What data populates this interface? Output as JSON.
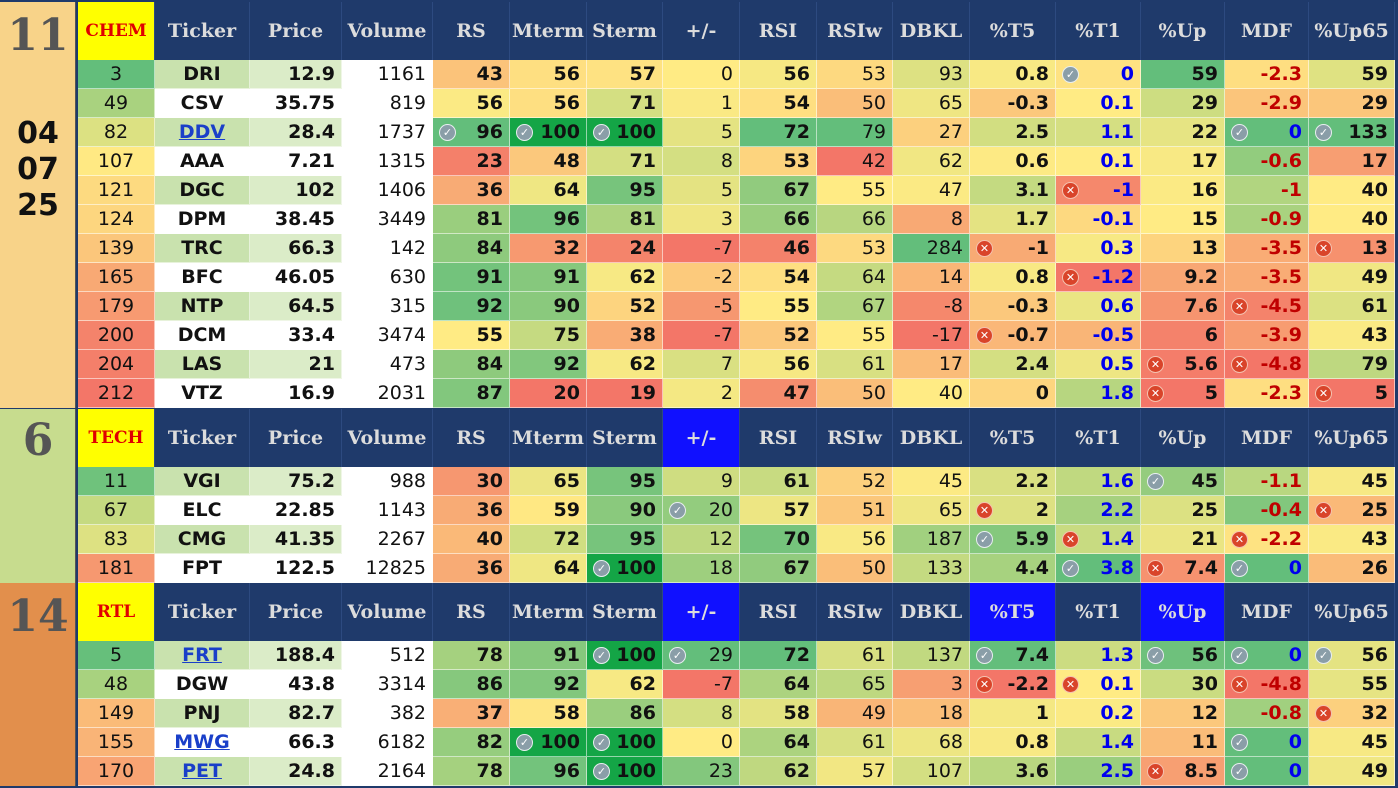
{
  "columns": [
    "Ticker",
    "Price",
    "Volume",
    "RS",
    "Mterm",
    "Sterm",
    "+/-",
    "RSI",
    "RSIw",
    "DBKL",
    "%T5",
    "%T1",
    "%Up",
    "MDF",
    "%Up65"
  ],
  "sections": [
    {
      "count": "11",
      "date": [
        "04",
        "07",
        "25"
      ],
      "sector": "CHEM",
      "highlight_cols": [],
      "rows": [
        {
          "rank": "3",
          "ticker": "DRI",
          "price": "12.9",
          "volume": "1161",
          "rs": "43",
          "mterm": "56",
          "sterm": "57",
          "pm": "0",
          "rsi": "56",
          "rsiw": "53",
          "dbkl": "93",
          "t5": "0.8",
          "t1": "0",
          "up": "59",
          "mdf": "-2.3",
          "up65": "59"
        },
        {
          "rank": "49",
          "ticker": "CSV",
          "price": "35.75",
          "volume": "819",
          "rs": "56",
          "mterm": "56",
          "sterm": "71",
          "pm": "1",
          "rsi": "54",
          "rsiw": "50",
          "dbkl": "65",
          "t5": "-0.3",
          "t1": "0.1",
          "up": "29",
          "mdf": "-2.9",
          "up65": "29"
        },
        {
          "rank": "82",
          "ticker": "DDV",
          "price": "28.4",
          "volume": "1737",
          "rs": "96",
          "mterm": "100",
          "sterm": "100",
          "pm": "5",
          "rsi": "72",
          "rsiw": "79",
          "dbkl": "27",
          "t5": "2.5",
          "t1": "1.1",
          "up": "22",
          "mdf": "0",
          "up65": "133"
        },
        {
          "rank": "107",
          "ticker": "AAA",
          "price": "7.21",
          "volume": "1315",
          "rs": "23",
          "mterm": "48",
          "sterm": "71",
          "pm": "8",
          "rsi": "53",
          "rsiw": "42",
          "dbkl": "62",
          "t5": "0.6",
          "t1": "0.1",
          "up": "17",
          "mdf": "-0.6",
          "up65": "17"
        },
        {
          "rank": "121",
          "ticker": "DGC",
          "price": "102",
          "volume": "1406",
          "rs": "36",
          "mterm": "64",
          "sterm": "95",
          "pm": "5",
          "rsi": "67",
          "rsiw": "55",
          "dbkl": "47",
          "t5": "3.1",
          "t1": "-1",
          "up": "16",
          "mdf": "-1",
          "up65": "40"
        },
        {
          "rank": "124",
          "ticker": "DPM",
          "price": "38.45",
          "volume": "3449",
          "rs": "81",
          "mterm": "96",
          "sterm": "81",
          "pm": "3",
          "rsi": "66",
          "rsiw": "66",
          "dbkl": "8",
          "t5": "1.7",
          "t1": "-0.1",
          "up": "15",
          "mdf": "-0.9",
          "up65": "40"
        },
        {
          "rank": "139",
          "ticker": "TRC",
          "price": "66.3",
          "volume": "142",
          "rs": "84",
          "mterm": "32",
          "sterm": "24",
          "pm": "-7",
          "rsi": "46",
          "rsiw": "53",
          "dbkl": "284",
          "t5": "-1",
          "t1": "0.3",
          "up": "13",
          "mdf": "-3.5",
          "up65": "13"
        },
        {
          "rank": "165",
          "ticker": "BFC",
          "price": "46.05",
          "volume": "630",
          "rs": "91",
          "mterm": "91",
          "sterm": "62",
          "pm": "-2",
          "rsi": "54",
          "rsiw": "64",
          "dbkl": "14",
          "t5": "0.8",
          "t1": "-1.2",
          "up": "9.2",
          "mdf": "-3.5",
          "up65": "49"
        },
        {
          "rank": "179",
          "ticker": "NTP",
          "price": "64.5",
          "volume": "315",
          "rs": "92",
          "mterm": "90",
          "sterm": "52",
          "pm": "-5",
          "rsi": "55",
          "rsiw": "67",
          "dbkl": "-8",
          "t5": "-0.3",
          "t1": "0.6",
          "up": "7.6",
          "mdf": "-4.5",
          "up65": "61"
        },
        {
          "rank": "200",
          "ticker": "DCM",
          "price": "33.4",
          "volume": "3474",
          "rs": "55",
          "mterm": "75",
          "sterm": "38",
          "pm": "-7",
          "rsi": "52",
          "rsiw": "55",
          "dbkl": "-17",
          "t5": "-0.7",
          "t1": "-0.5",
          "up": "6",
          "mdf": "-3.9",
          "up65": "43"
        },
        {
          "rank": "204",
          "ticker": "LAS",
          "price": "21",
          "volume": "473",
          "rs": "84",
          "mterm": "92",
          "sterm": "62",
          "pm": "7",
          "rsi": "56",
          "rsiw": "61",
          "dbkl": "17",
          "t5": "2.4",
          "t1": "0.5",
          "up": "5.6",
          "mdf": "-4.8",
          "up65": "79"
        },
        {
          "rank": "212",
          "ticker": "VTZ",
          "price": "16.9",
          "volume": "2031",
          "rs": "87",
          "mterm": "20",
          "sterm": "19",
          "pm": "2",
          "rsi": "47",
          "rsiw": "50",
          "dbkl": "40",
          "t5": "0",
          "t1": "1.8",
          "up": "5",
          "mdf": "-2.3",
          "up65": "5"
        }
      ]
    },
    {
      "count": "6",
      "date": [],
      "sector": "TECH",
      "highlight_cols": [
        "+/-"
      ],
      "rows": [
        {
          "rank": "11",
          "ticker": "VGI",
          "price": "75.2",
          "volume": "988",
          "rs": "30",
          "mterm": "65",
          "sterm": "95",
          "pm": "9",
          "rsi": "61",
          "rsiw": "52",
          "dbkl": "45",
          "t5": "2.2",
          "t1": "1.6",
          "up": "45",
          "mdf": "-1.1",
          "up65": "45"
        },
        {
          "rank": "67",
          "ticker": "ELC",
          "price": "22.85",
          "volume": "1143",
          "rs": "36",
          "mterm": "59",
          "sterm": "90",
          "pm": "20",
          "rsi": "57",
          "rsiw": "51",
          "dbkl": "65",
          "t5": "2",
          "t1": "2.2",
          "up": "25",
          "mdf": "-0.4",
          "up65": "25"
        },
        {
          "rank": "83",
          "ticker": "CMG",
          "price": "41.35",
          "volume": "2267",
          "rs": "40",
          "mterm": "72",
          "sterm": "95",
          "pm": "12",
          "rsi": "70",
          "rsiw": "56",
          "dbkl": "187",
          "t5": "5.9",
          "t1": "1.4",
          "up": "21",
          "mdf": "-2.2",
          "up65": "43"
        },
        {
          "rank": "181",
          "ticker": "FPT",
          "price": "122.5",
          "volume": "12825",
          "rs": "36",
          "mterm": "64",
          "sterm": "100",
          "pm": "18",
          "rsi": "67",
          "rsiw": "50",
          "dbkl": "133",
          "t5": "4.4",
          "t1": "3.8",
          "up": "7.4",
          "mdf": "0",
          "up65": "26"
        }
      ]
    },
    {
      "count": "14",
      "date": [],
      "sector": "RTL",
      "highlight_cols": [
        "+/-",
        "%T5",
        "%Up"
      ],
      "rows": [
        {
          "rank": "5",
          "ticker": "FRT",
          "price": "188.4",
          "volume": "512",
          "rs": "78",
          "mterm": "91",
          "sterm": "100",
          "pm": "29",
          "rsi": "72",
          "rsiw": "61",
          "dbkl": "137",
          "t5": "7.4",
          "t1": "1.3",
          "up": "56",
          "mdf": "0",
          "up65": "56"
        },
        {
          "rank": "48",
          "ticker": "DGW",
          "price": "43.8",
          "volume": "3314",
          "rs": "86",
          "mterm": "92",
          "sterm": "62",
          "pm": "-7",
          "rsi": "64",
          "rsiw": "65",
          "dbkl": "3",
          "t5": "-2.2",
          "t1": "0.1",
          "up": "30",
          "mdf": "-4.8",
          "up65": "55"
        },
        {
          "rank": "149",
          "ticker": "PNJ",
          "price": "82.7",
          "volume": "382",
          "rs": "37",
          "mterm": "58",
          "sterm": "86",
          "pm": "8",
          "rsi": "58",
          "rsiw": "49",
          "dbkl": "18",
          "t5": "1",
          "t1": "0.2",
          "up": "12",
          "mdf": "-0.8",
          "up65": "32"
        },
        {
          "rank": "155",
          "ticker": "MWG",
          "price": "66.3",
          "volume": "6182",
          "rs": "82",
          "mterm": "100",
          "sterm": "100",
          "pm": "0",
          "rsi": "64",
          "rsiw": "61",
          "dbkl": "68",
          "t5": "0.8",
          "t1": "1.4",
          "up": "11",
          "mdf": "0",
          "up65": "45"
        },
        {
          "rank": "170",
          "ticker": "PET",
          "price": "24.8",
          "volume": "2164",
          "rs": "78",
          "mterm": "96",
          "sterm": "100",
          "pm": "23",
          "rsi": "62",
          "rsiw": "57",
          "dbkl": "107",
          "t5": "3.6",
          "t1": "2.5",
          "up": "8.5",
          "mdf": "0",
          "up65": "49"
        }
      ]
    }
  ]
}
